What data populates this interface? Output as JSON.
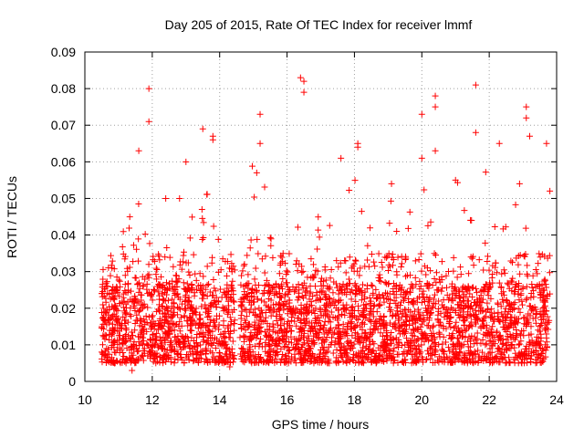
{
  "chart_data": {
    "type": "scatter",
    "title": "Day 205 of 2015, Rate Of TEC Index for receiver lmmf",
    "xlabel": "GPS time / hours",
    "ylabel": "ROTI / TECUs",
    "xlim": [
      10,
      24
    ],
    "ylim": [
      0,
      0.09
    ],
    "xticks": [
      10,
      12,
      14,
      16,
      18,
      20,
      22,
      24
    ],
    "yticks": [
      0,
      0.01,
      0.02,
      0.03,
      0.04,
      0.05,
      0.06,
      0.07,
      0.08,
      0.09
    ],
    "xtick_labels": [
      "10",
      "12",
      "14",
      "16",
      "18",
      "20",
      "22",
      "24"
    ],
    "ytick_labels": [
      "0",
      "0.01",
      "0.02",
      "0.03",
      "0.04",
      "0.05",
      "0.06",
      "0.07",
      "0.08",
      "0.09"
    ],
    "grid": true,
    "marker": "+",
    "series": [
      {
        "name": "ROTI",
        "color": "#ff0000",
        "data_range": [
          10.5,
          23.8
        ],
        "gaps": [
          [
            14.45,
            14.6
          ]
        ],
        "typical_range": [
          0.005,
          0.025
        ],
        "max_value": 0.083,
        "sample_points": [
          [
            11.9,
            0.08
          ],
          [
            11.9,
            0.071
          ],
          [
            13.5,
            0.069
          ],
          [
            13.8,
            0.067
          ],
          [
            13.8,
            0.066
          ],
          [
            15.2,
            0.073
          ],
          [
            15.2,
            0.065
          ],
          [
            16.4,
            0.083
          ],
          [
            16.5,
            0.082
          ],
          [
            16.5,
            0.079
          ],
          [
            17.6,
            0.061
          ],
          [
            18.1,
            0.065
          ],
          [
            18.1,
            0.064
          ],
          [
            20.0,
            0.073
          ],
          [
            20.0,
            0.061
          ],
          [
            20.4,
            0.078
          ],
          [
            20.4,
            0.075
          ],
          [
            20.4,
            0.063
          ],
          [
            21.6,
            0.081
          ],
          [
            21.6,
            0.068
          ],
          [
            22.3,
            0.065
          ],
          [
            23.1,
            0.075
          ],
          [
            23.1,
            0.072
          ],
          [
            23.2,
            0.067
          ],
          [
            23.7,
            0.065
          ],
          [
            23.8,
            0.052
          ],
          [
            11.6,
            0.063
          ],
          [
            13.0,
            0.06
          ],
          [
            12.4,
            0.05
          ],
          [
            15.1,
            0.057
          ],
          [
            19.1,
            0.054
          ],
          [
            21.0,
            0.055
          ],
          [
            22.9,
            0.054
          ],
          [
            14.3,
            0.004
          ],
          [
            11.4,
            0.003
          ]
        ]
      }
    ]
  }
}
